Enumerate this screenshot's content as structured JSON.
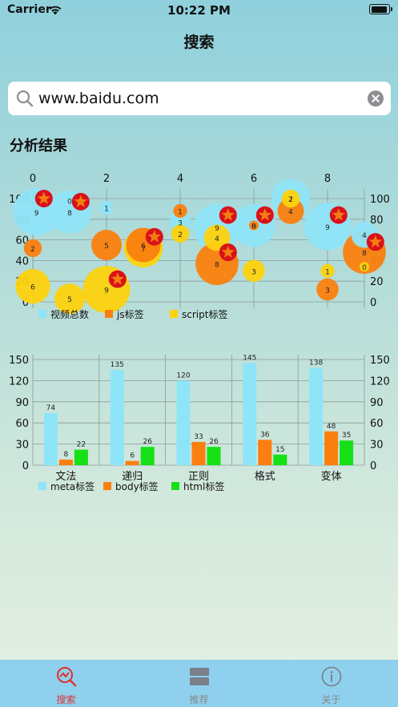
{
  "status": {
    "carrier": "Carrier",
    "time": "10:22 PM",
    "battery_level": 0.95
  },
  "nav": {
    "title": "搜索"
  },
  "search": {
    "value": "www.baidu.com",
    "placeholder": ""
  },
  "section": {
    "title": "分析结果"
  },
  "colors": {
    "cyan": "#8fe5f8",
    "orange": "#fb7f0e",
    "yellow": "#fdd20e",
    "green": "#16e016",
    "star_bg": "#d9121a",
    "star": "#f47d12",
    "tab_active": "#e0302f"
  },
  "chart_data": [
    {
      "type": "bubble",
      "xlim": [
        0,
        9
      ],
      "ylim": [
        0,
        100
      ],
      "x_ticks": [
        0,
        2,
        4,
        6,
        8
      ],
      "y_ticks": [
        0,
        20,
        40,
        60,
        80,
        100
      ],
      "grid": true,
      "legend_position": "bottom-left",
      "series": [
        {
          "name": "视频总数",
          "color": "#8fe5f8",
          "points": [
            {
              "x": 0.1,
              "y": 87,
              "size": 9,
              "label": "9"
            },
            {
              "x": 1.0,
              "y": 87,
              "size": 8,
              "label": "8"
            },
            {
              "x": 1.0,
              "y": 98,
              "size": 0,
              "label": "0"
            },
            {
              "x": 2.0,
              "y": 91,
              "size": 1,
              "label": "1"
            },
            {
              "x": 4.0,
              "y": 77,
              "size": 3,
              "label": "3"
            },
            {
              "x": 5.0,
              "y": 72,
              "size": 9,
              "label": "9"
            },
            {
              "x": 6.0,
              "y": 74,
              "size": 8,
              "label": "8"
            },
            {
              "x": 7.0,
              "y": 100,
              "size": 7,
              "label": "7"
            },
            {
              "x": 8.0,
              "y": 73,
              "size": 9,
              "label": "9"
            },
            {
              "x": 9.0,
              "y": 65,
              "size": 4,
              "label": "4"
            }
          ]
        },
        {
          "name": "js标签",
          "color": "#fb7f0e",
          "points": [
            {
              "x": 0.0,
              "y": 52,
              "size": 2,
              "label": "2"
            },
            {
              "x": 2.0,
              "y": 55,
              "size": 5,
              "label": "5"
            },
            {
              "x": 3.0,
              "y": 55,
              "size": 6,
              "label": "6"
            },
            {
              "x": 4.0,
              "y": 88,
              "size": 1,
              "label": "1"
            },
            {
              "x": 5.0,
              "y": 37,
              "size": 8,
              "label": "8"
            },
            {
              "x": 6.0,
              "y": 74,
              "size": 0,
              "label": "0"
            },
            {
              "x": 7.0,
              "y": 88,
              "size": 4,
              "label": "4"
            },
            {
              "x": 8.0,
              "y": 12,
              "size": 3,
              "label": "3"
            },
            {
              "x": 9.0,
              "y": 48,
              "size": 8,
              "label": "8"
            }
          ]
        },
        {
          "name": "script标签",
          "color": "#fdd20e",
          "points": [
            {
              "x": 0.0,
              "y": 15,
              "size": 6,
              "label": "6"
            },
            {
              "x": 1.0,
              "y": 3,
              "size": 5,
              "label": "5"
            },
            {
              "x": 2.0,
              "y": 12,
              "size": 9,
              "label": "9"
            },
            {
              "x": 3.0,
              "y": 52,
              "size": 7,
              "label": "7"
            },
            {
              "x": 4.0,
              "y": 66,
              "size": 2,
              "label": "2"
            },
            {
              "x": 5.0,
              "y": 62,
              "size": 4,
              "label": "4"
            },
            {
              "x": 6.0,
              "y": 30,
              "size": 3,
              "label": "3"
            },
            {
              "x": 7.0,
              "y": 100,
              "size": 2,
              "label": "2"
            },
            {
              "x": 8.0,
              "y": 30,
              "size": 1,
              "label": "1"
            },
            {
              "x": 9.0,
              "y": 34,
              "size": 0,
              "label": "0"
            }
          ]
        }
      ],
      "markers": [
        {
          "x": 0.3,
          "y": 100
        },
        {
          "x": 1.3,
          "y": 97
        },
        {
          "x": 3.3,
          "y": 63
        },
        {
          "x": 2.3,
          "y": 22
        },
        {
          "x": 5.3,
          "y": 84
        },
        {
          "x": 5.3,
          "y": 48
        },
        {
          "x": 6.3,
          "y": 84
        },
        {
          "x": 8.3,
          "y": 84
        },
        {
          "x": 9.3,
          "y": 58
        }
      ]
    },
    {
      "type": "bar",
      "categories": [
        "文法",
        "递归",
        "正则",
        "格式",
        "变体"
      ],
      "ylim": [
        0,
        150
      ],
      "y_ticks": [
        0,
        30,
        60,
        90,
        120,
        150
      ],
      "grid": true,
      "legend_position": "bottom-left",
      "series": [
        {
          "name": "meta标签",
          "color": "#8fe5f8",
          "values": [
            74,
            135,
            120,
            145,
            138
          ]
        },
        {
          "name": "body标签",
          "color": "#fb7f0e",
          "values": [
            8,
            6,
            33,
            36,
            48
          ]
        },
        {
          "name": "html标签",
          "color": "#16e016",
          "values": [
            22,
            26,
            26,
            15,
            35
          ]
        }
      ]
    }
  ],
  "tabs": [
    {
      "label": "搜索",
      "icon": "search-chart-icon",
      "active": true
    },
    {
      "label": "推荐",
      "icon": "list-icon",
      "active": false
    },
    {
      "label": "关于",
      "icon": "info-icon",
      "active": false
    }
  ]
}
